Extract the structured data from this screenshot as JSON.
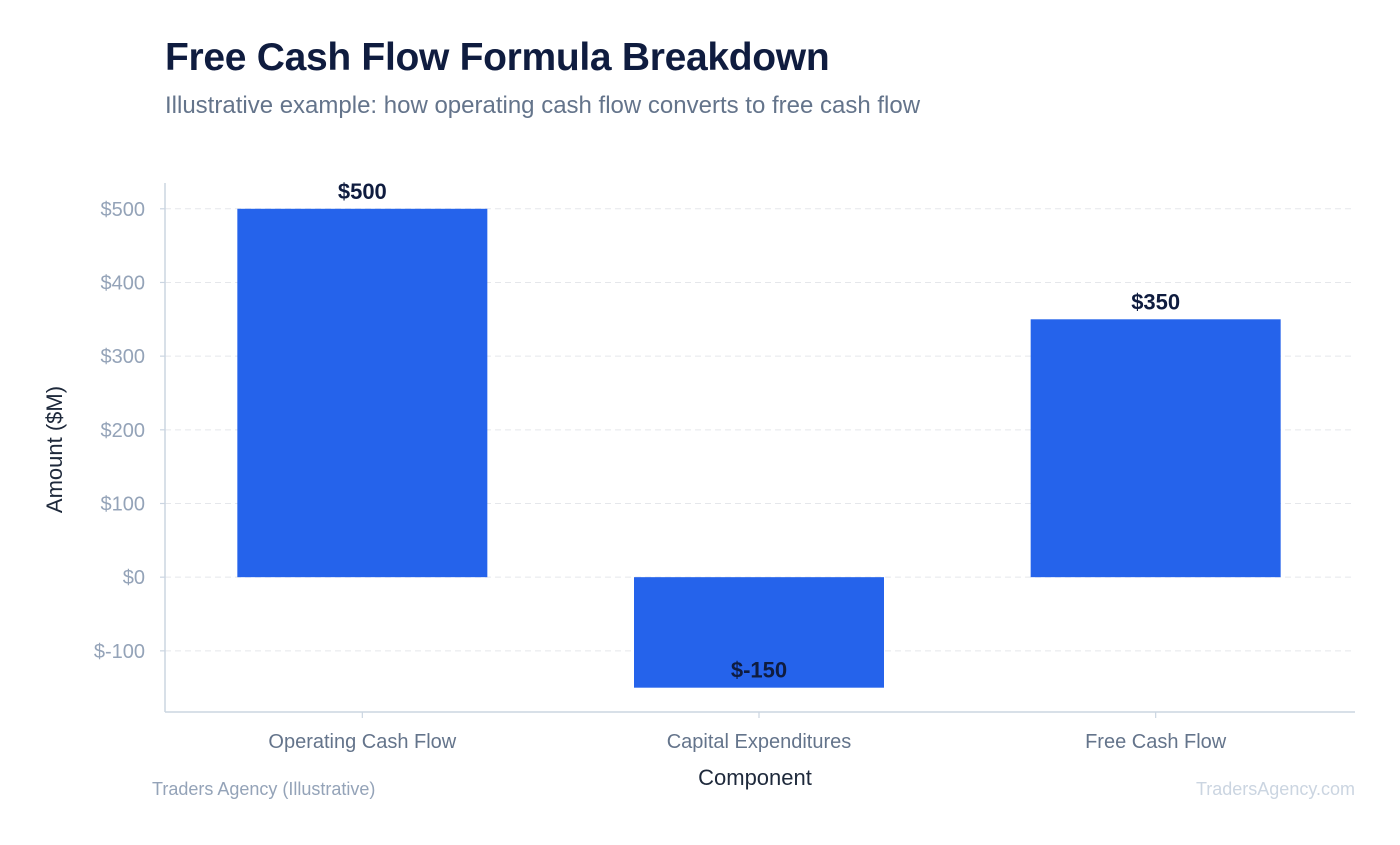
{
  "header": {
    "title": "Free Cash Flow Formula Breakdown",
    "subtitle": "Illustrative example: how operating cash flow converts to free cash flow"
  },
  "footer": {
    "source": "Traders Agency (Illustrative)",
    "watermark": "TradersAgency.com"
  },
  "colors": {
    "bar": "#2563eb",
    "axis": "#cbd5e1",
    "grid": "#e5e7eb",
    "tick_label": "#94a3b8",
    "category_label": "#64748b",
    "axis_title": "#1e293b",
    "data_label": "#0f1c3f"
  },
  "chart_data": {
    "type": "bar",
    "title": "Free Cash Flow Formula Breakdown",
    "subtitle": "Illustrative example: how operating cash flow converts to free cash flow",
    "xlabel": "Component",
    "ylabel": "Amount ($M)",
    "categories": [
      "Operating Cash Flow",
      "Capital Expenditures",
      "Free Cash Flow"
    ],
    "values": [
      500,
      -150,
      350
    ],
    "data_labels": [
      "$500",
      "$-150",
      "$350"
    ],
    "ylim": [
      -183,
      535
    ],
    "yticks": [
      -100,
      0,
      100,
      200,
      300,
      400,
      500
    ],
    "ytick_labels": [
      "$-100",
      "$0",
      "$100",
      "$200",
      "$300",
      "$400",
      "$500"
    ],
    "grid": true,
    "legend": "none"
  }
}
